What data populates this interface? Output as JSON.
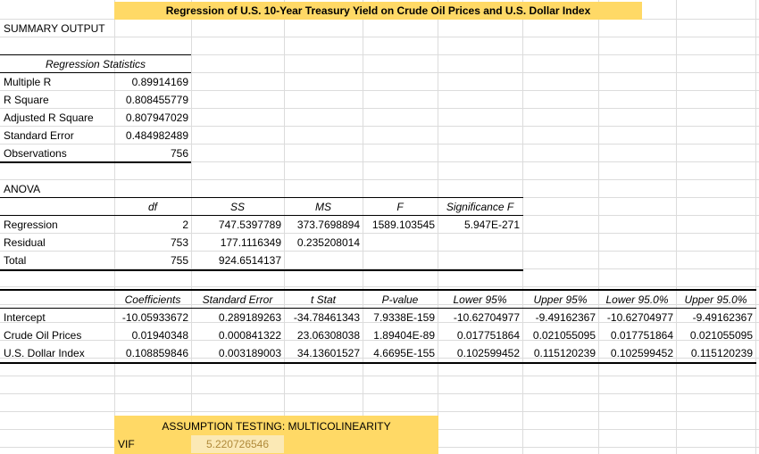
{
  "title": "Regression of U.S. 10-Year Treasury Yield on Crude Oil Prices and U.S. Dollar Index",
  "summary_output": "SUMMARY OUTPUT",
  "regression_statistics": {
    "header": "Regression Statistics",
    "rows": [
      {
        "label": "Multiple R",
        "value": "0.89914169"
      },
      {
        "label": "R Square",
        "value": "0.808455779"
      },
      {
        "label": "Adjusted R Square",
        "value": "0.807947029"
      },
      {
        "label": "Standard Error",
        "value": "0.484982489"
      },
      {
        "label": "Observations",
        "value": "756"
      }
    ]
  },
  "anova": {
    "label": "ANOVA",
    "headers": [
      "df",
      "SS",
      "MS",
      "F",
      "Significance F"
    ],
    "rows": [
      {
        "label": "Regression",
        "df": "2",
        "ss": "747.5397789",
        "ms": "373.7698894",
        "f": "1589.103545",
        "sig": "5.947E-271"
      },
      {
        "label": "Residual",
        "df": "753",
        "ss": "177.1116349",
        "ms": "0.235208014",
        "f": "",
        "sig": ""
      },
      {
        "label": "Total",
        "df": "755",
        "ss": "924.6514137",
        "ms": "",
        "f": "",
        "sig": ""
      }
    ]
  },
  "coefficients": {
    "headers": [
      "Coefficients",
      "Standard Error",
      "t Stat",
      "P-value",
      "Lower 95%",
      "Upper 95%",
      "Lower 95.0%",
      "Upper 95.0%"
    ],
    "rows": [
      {
        "label": "Intercept",
        "vals": [
          "-10.05933672",
          "0.289189263",
          "-34.78461343",
          "7.9338E-159",
          "-10.62704977",
          "-9.49162367",
          "-10.62704977",
          "-9.49162367"
        ]
      },
      {
        "label": "Crude Oil Prices",
        "vals": [
          "0.01940348",
          "0.000841322",
          "23.06308038",
          "1.89404E-89",
          "0.017751864",
          "0.021055095",
          "0.017751864",
          "0.021055095"
        ]
      },
      {
        "label": "U.S. Dollar Index",
        "vals": [
          "0.108859846",
          "0.003189003",
          "34.13601527",
          "4.6695E-155",
          "0.102599452",
          "0.115120239",
          "0.102599452",
          "0.115120239"
        ]
      }
    ]
  },
  "assumption": {
    "title": "ASSUMPTION TESTING: MULTICOLINEARITY",
    "vif_label": "VIF",
    "vif_value": "5.220726546"
  },
  "colors": {
    "highlight": "#ffd966",
    "vif_text": "#b08a3a",
    "gridline": "#dcdcdc"
  }
}
